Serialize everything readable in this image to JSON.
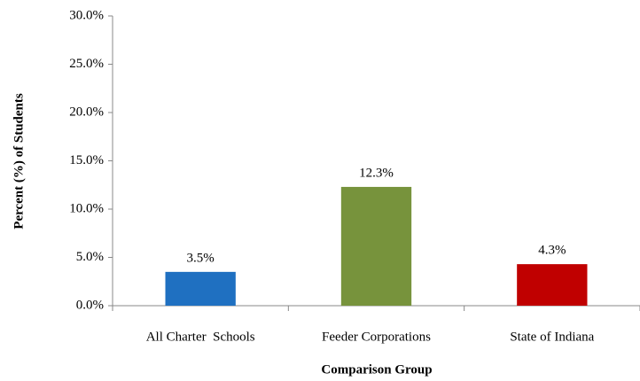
{
  "chart_data": {
    "type": "bar",
    "x_label": "Comparison Group",
    "y_label": "Percent (%) of Students",
    "categories": [
      "All Charter  Schools",
      "Feeder Corporations",
      "State of Indiana"
    ],
    "values": [
      3.5,
      12.3,
      4.3
    ],
    "value_labels": [
      "3.5%",
      "12.3%",
      "4.3%"
    ],
    "colors": [
      "#1f70c1",
      "#77933c",
      "#c00000"
    ],
    "ylim": [
      0,
      30
    ],
    "yticks": [
      {
        "value": 0,
        "label": "0.0%"
      },
      {
        "value": 5,
        "label": "5.0%"
      },
      {
        "value": 10,
        "label": "10.0%"
      },
      {
        "value": 15,
        "label": "15.0%"
      },
      {
        "value": 20,
        "label": "20.0%"
      },
      {
        "value": 25,
        "label": "25.0%"
      },
      {
        "value": 30,
        "label": "30.0%"
      }
    ],
    "grid": false
  }
}
